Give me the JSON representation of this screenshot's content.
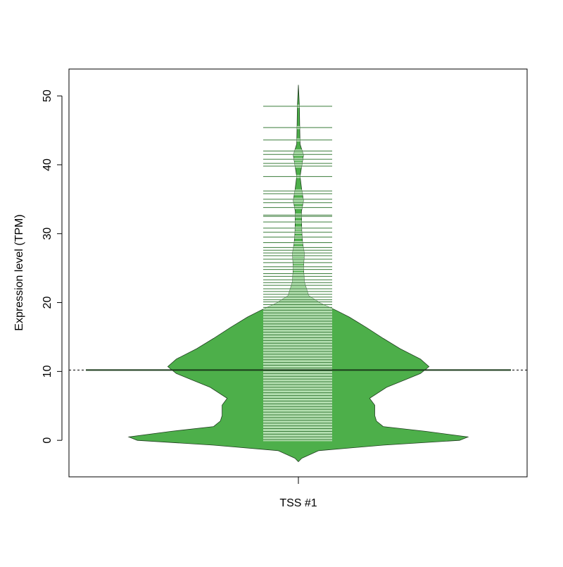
{
  "chart_data": {
    "type": "violin",
    "y_label": "Expression level (TPM)",
    "categories": [
      "TSS #1"
    ],
    "color": "#4daf4a",
    "border_color": "#1f3f1f",
    "beanline_color": "#3a7d3a",
    "beanline_inner_color": "#b4dfb1",
    "ylim": [
      -5.3,
      53.9
    ],
    "yticks": [
      0,
      10,
      20,
      30,
      40,
      50
    ],
    "mean": 10.2,
    "density": {
      "y": [
        -3.1,
        -2.6,
        -1.5,
        -0.7,
        0,
        0.5,
        1.3,
        2.0,
        2.8,
        3.6,
        5.1,
        6.1,
        7.7,
        8.7,
        9.7,
        10.7,
        11.8,
        13.3,
        14.8,
        16.4,
        17.9,
        18.9,
        19.9,
        21.0,
        23.0,
        25.1,
        27.1,
        28.6,
        30.2,
        33.2,
        34.8,
        36.3,
        38.3,
        39.9,
        41.4,
        43.0,
        45.5,
        48.6,
        51.6
      ],
      "width": [
        0,
        0.02,
        0.12,
        0.5,
        0.95,
        1.0,
        0.75,
        0.5,
        0.46,
        0.45,
        0.45,
        0.42,
        0.52,
        0.62,
        0.72,
        0.77,
        0.72,
        0.6,
        0.5,
        0.4,
        0.3,
        0.22,
        0.13,
        0.06,
        0.035,
        0.03,
        0.035,
        0.025,
        0.02,
        0.018,
        0.03,
        0.02,
        0.01,
        0.02,
        0.03,
        0.01,
        0.008,
        0.006,
        0
      ]
    },
    "observations": [
      48.5,
      45.4,
      43.6,
      42.0,
      41.5,
      40.8,
      40.2,
      39.8,
      38.3,
      36.2,
      35.8,
      35.0,
      34.5,
      33.8,
      32.7,
      32.5,
      31.7,
      30.8,
      30.2,
      29.5,
      28.7,
      28.0,
      27.6,
      27.2,
      26.8,
      26.3,
      25.8,
      25.2,
      24.8,
      24.2,
      23.8,
      23.3,
      22.9,
      22.5,
      22.0,
      21.6,
      21.2,
      20.8,
      20.4,
      20.1,
      19.7,
      19.3,
      18.9,
      18.5,
      18.1,
      17.7,
      17.3,
      16.9,
      16.5,
      16.1,
      15.7,
      15.3,
      14.9,
      14.5,
      14.1,
      13.7,
      13.3,
      12.9,
      12.5,
      12.1,
      11.7,
      11.3,
      10.9,
      10.5,
      10.1,
      9.7,
      9.3,
      8.9,
      8.5,
      8.1,
      7.7,
      7.3,
      6.9,
      6.5,
      6.1,
      5.7,
      5.3,
      4.9,
      4.5,
      4.1,
      3.7,
      3.3,
      2.9,
      2.5,
      2.1,
      1.7,
      1.3,
      0.9,
      0.5,
      0.1
    ]
  }
}
